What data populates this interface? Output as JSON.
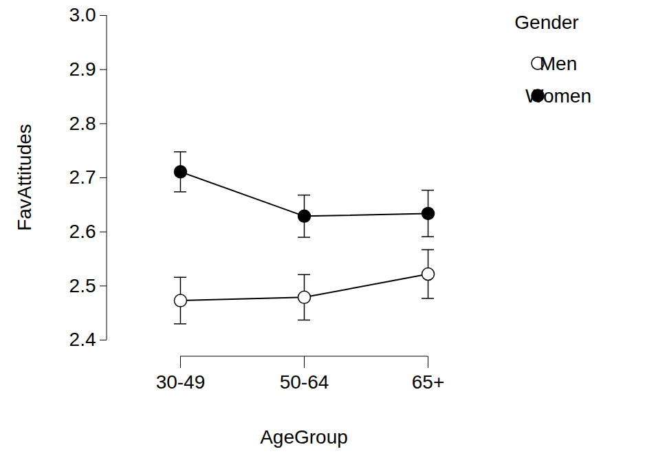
{
  "chart_data": {
    "type": "line",
    "x_label": "AgeGroup",
    "y_label": "FavAttitudes",
    "legend_title": "Gender",
    "categories": [
      "30-49",
      "50-64",
      "65+"
    ],
    "series": [
      {
        "name": "Men",
        "color": "#000000",
        "marker": "circle-open",
        "values": [
          2.473,
          2.479,
          2.522
        ],
        "errors": [
          0.043,
          0.042,
          0.045
        ]
      },
      {
        "name": "Women",
        "color": "#000000",
        "marker": "circle",
        "values": [
          2.711,
          2.629,
          2.634
        ],
        "errors": [
          0.037,
          0.039,
          0.043
        ]
      }
    ],
    "ylim": [
      2.4,
      3.0
    ],
    "yticks": [
      2.4,
      2.5,
      2.6,
      2.7,
      2.8,
      2.9,
      {
        "value": 3.0,
        "label": "3.0"
      }
    ],
    "legend": "top-right",
    "grid": false
  }
}
